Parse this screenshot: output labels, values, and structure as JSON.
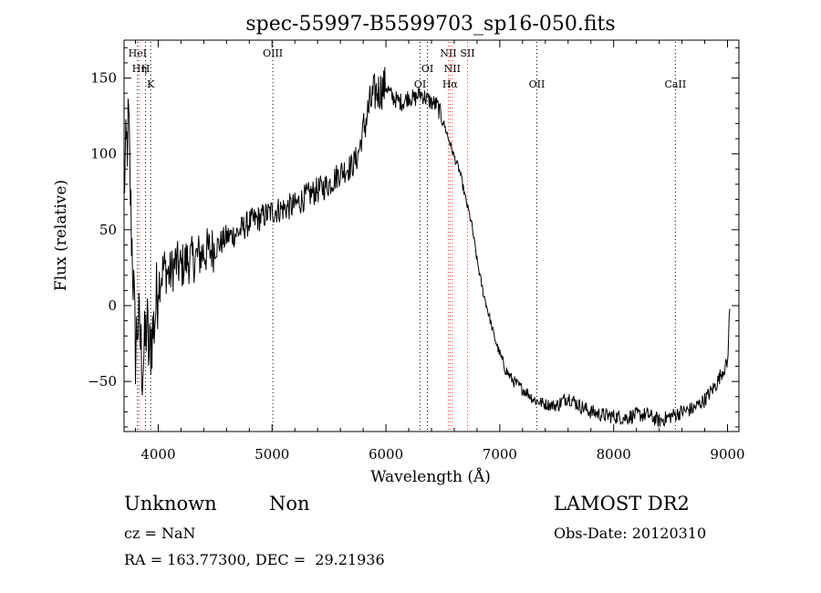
{
  "chart_data": {
    "type": "line",
    "title": "spec-55997-B5599703_sp16-050.fits",
    "xlabel": "Wavelength (Å)",
    "ylabel": "Flux (relative)",
    "xlim": [
      3700,
      9100
    ],
    "ylim": [
      -83,
      175
    ],
    "xticks": [
      4000,
      5000,
      6000,
      7000,
      8000,
      9000
    ],
    "yticks": [
      -50,
      0,
      50,
      100,
      150
    ],
    "grid": false,
    "legend": "none",
    "line_color": "#000000",
    "spectrum": {
      "x": [
        3700,
        3740,
        3760,
        3780,
        3800,
        3820,
        3840,
        3860,
        3880,
        3900,
        3920,
        3940,
        3960,
        3980,
        4000,
        4050,
        4100,
        4150,
        4200,
        4250,
        4300,
        4400,
        4500,
        4600,
        4700,
        4800,
        4900,
        5000,
        5100,
        5200,
        5300,
        5400,
        5500,
        5600,
        5700,
        5750,
        5800,
        5850,
        5900,
        5950,
        6000,
        6050,
        6100,
        6150,
        6200,
        6250,
        6300,
        6350,
        6400,
        6450,
        6500,
        6550,
        6600,
        6650,
        6700,
        6750,
        6800,
        6850,
        6900,
        6950,
        7000,
        7050,
        7100,
        7150,
        7200,
        7250,
        7300,
        7400,
        7500,
        7600,
        7700,
        7800,
        7900,
        8000,
        8100,
        8200,
        8300,
        8400,
        8500,
        8600,
        8700,
        8800,
        8900,
        8950,
        9000,
        9020
      ],
      "y": [
        80,
        120,
        60,
        20,
        -30,
        -10,
        -20,
        -40,
        -30,
        -10,
        -35,
        -20,
        -15,
        0,
        15,
        25,
        20,
        28,
        25,
        30,
        30,
        35,
        38,
        45,
        48,
        55,
        58,
        62,
        64,
        66,
        72,
        76,
        80,
        88,
        92,
        98,
        115,
        130,
        140,
        142,
        145,
        138,
        135,
        134,
        138,
        136,
        140,
        137,
        134,
        132,
        122,
        110,
        98,
        88,
        70,
        55,
        30,
        10,
        -5,
        -20,
        -32,
        -42,
        -48,
        -52,
        -55,
        -58,
        -62,
        -65,
        -66,
        -60,
        -66,
        -70,
        -72,
        -73,
        -74,
        -72,
        -72,
        -76,
        -73,
        -70,
        -68,
        -62,
        -52,
        -44,
        -38,
        0
      ]
    },
    "line_markers": [
      {
        "label": "HeI",
        "x": 3819,
        "color": "#000000",
        "row": 1
      },
      {
        "label": "Hη",
        "x": 3835,
        "color": "#ff3333",
        "row": 2
      },
      {
        "label": "H",
        "x": 3889,
        "color": "#000000",
        "row": 2
      },
      {
        "label": "K",
        "x": 3934,
        "color": "#000000",
        "row": 3
      },
      {
        "label": "OIII",
        "x": 5007,
        "color": "#000000",
        "row": 1
      },
      {
        "label": "OI",
        "x": 6300,
        "color": "#000000",
        "row": 3
      },
      {
        "label": "OI",
        "x": 6364,
        "color": "#000000",
        "row": 2
      },
      {
        "label": "NII",
        "x": 6548,
        "color": "#ff3333",
        "row": 1
      },
      {
        "label": "NII",
        "x": 6583,
        "color": "#ff3333",
        "row": 2
      },
      {
        "label": "Hα",
        "x": 6563,
        "color": "#ff3333",
        "row": 3
      },
      {
        "label": "SII",
        "x": 6716,
        "color": "#ff3333",
        "row": 1
      },
      {
        "label": "OII",
        "x": 7325,
        "color": "#000000",
        "row": 3
      },
      {
        "label": "CaII",
        "x": 8542,
        "color": "#000000",
        "row": 3
      }
    ]
  },
  "info": {
    "class": "Unknown",
    "subclass": "Non",
    "survey": "LAMOST DR2",
    "cz": "cz = NaN",
    "obs_date": "Obs-Date: 20120310",
    "coords": "RA = 163.77300, DEC =  29.21936"
  }
}
